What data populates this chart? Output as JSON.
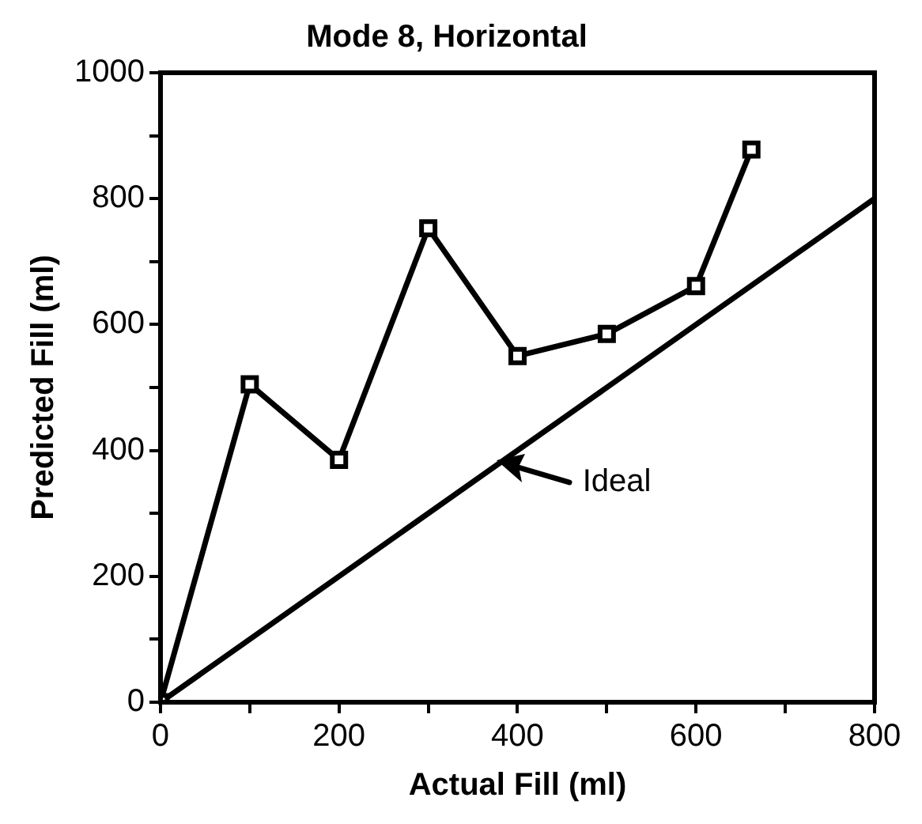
{
  "chart_data": {
    "type": "line",
    "title": "Mode 8, Horizontal",
    "xlabel": "Actual Fill (ml)",
    "ylabel": "Predicted Fill (ml)",
    "xlim": [
      0,
      800
    ],
    "ylim": [
      0,
      1000
    ],
    "xticks": [
      0,
      {
        "value": 100,
        "label": null
      },
      200,
      {
        "value": 300,
        "label": null
      },
      400,
      {
        "value": 500,
        "label": null
      },
      600,
      {
        "value": 700,
        "label": null
      },
      800
    ],
    "yticks": [
      0,
      {
        "value": 100,
        "label": null
      },
      200,
      {
        "value": 300,
        "label": null
      },
      400,
      {
        "value": 500,
        "label": null
      },
      600,
      {
        "value": 700,
        "label": null
      },
      800,
      {
        "value": 900,
        "label": null
      },
      1000
    ],
    "grid": false,
    "legend": false,
    "series": [
      {
        "color": "#000000",
        "marker": "square",
        "x": [
          0,
          100,
          200,
          300,
          400,
          500,
          600,
          662
        ],
        "values": [
          0,
          505,
          385,
          753,
          550,
          585,
          661,
          878
        ]
      },
      {
        "color": "#000000",
        "marker": "none",
        "x": [
          0,
          800
        ],
        "values": [
          0,
          800
        ]
      }
    ],
    "annotations": [
      {
        "text": "Ideal",
        "x": 370,
        "y": 370
      }
    ]
  }
}
